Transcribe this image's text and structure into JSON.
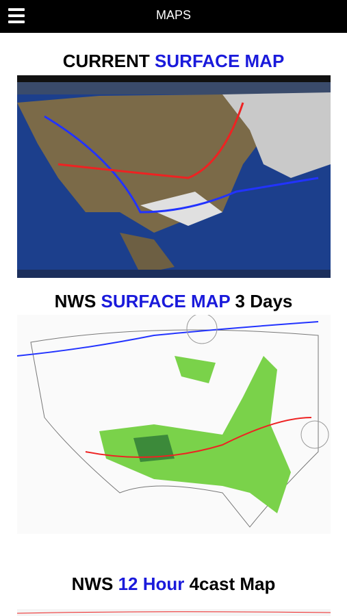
{
  "header": {
    "title": "MAPS"
  },
  "sections": [
    {
      "title_parts": [
        {
          "text": "CURRENT ",
          "color": "#000000"
        },
        {
          "text": "SURFACE MAP",
          "color": "#1a1adb"
        }
      ]
    },
    {
      "title_parts": [
        {
          "text": "NWS ",
          "color": "#000000"
        },
        {
          "text": "SURFACE MAP",
          "color": "#1a1adb"
        },
        {
          "text": " 3 Days",
          "color": "#000000"
        }
      ]
    },
    {
      "title_parts": [
        {
          "text": "NWS ",
          "color": "#000000"
        },
        {
          "text": "12 Hour",
          "color": "#1a1adb"
        },
        {
          "text": " 4cast Map",
          "color": "#000000"
        }
      ]
    }
  ]
}
